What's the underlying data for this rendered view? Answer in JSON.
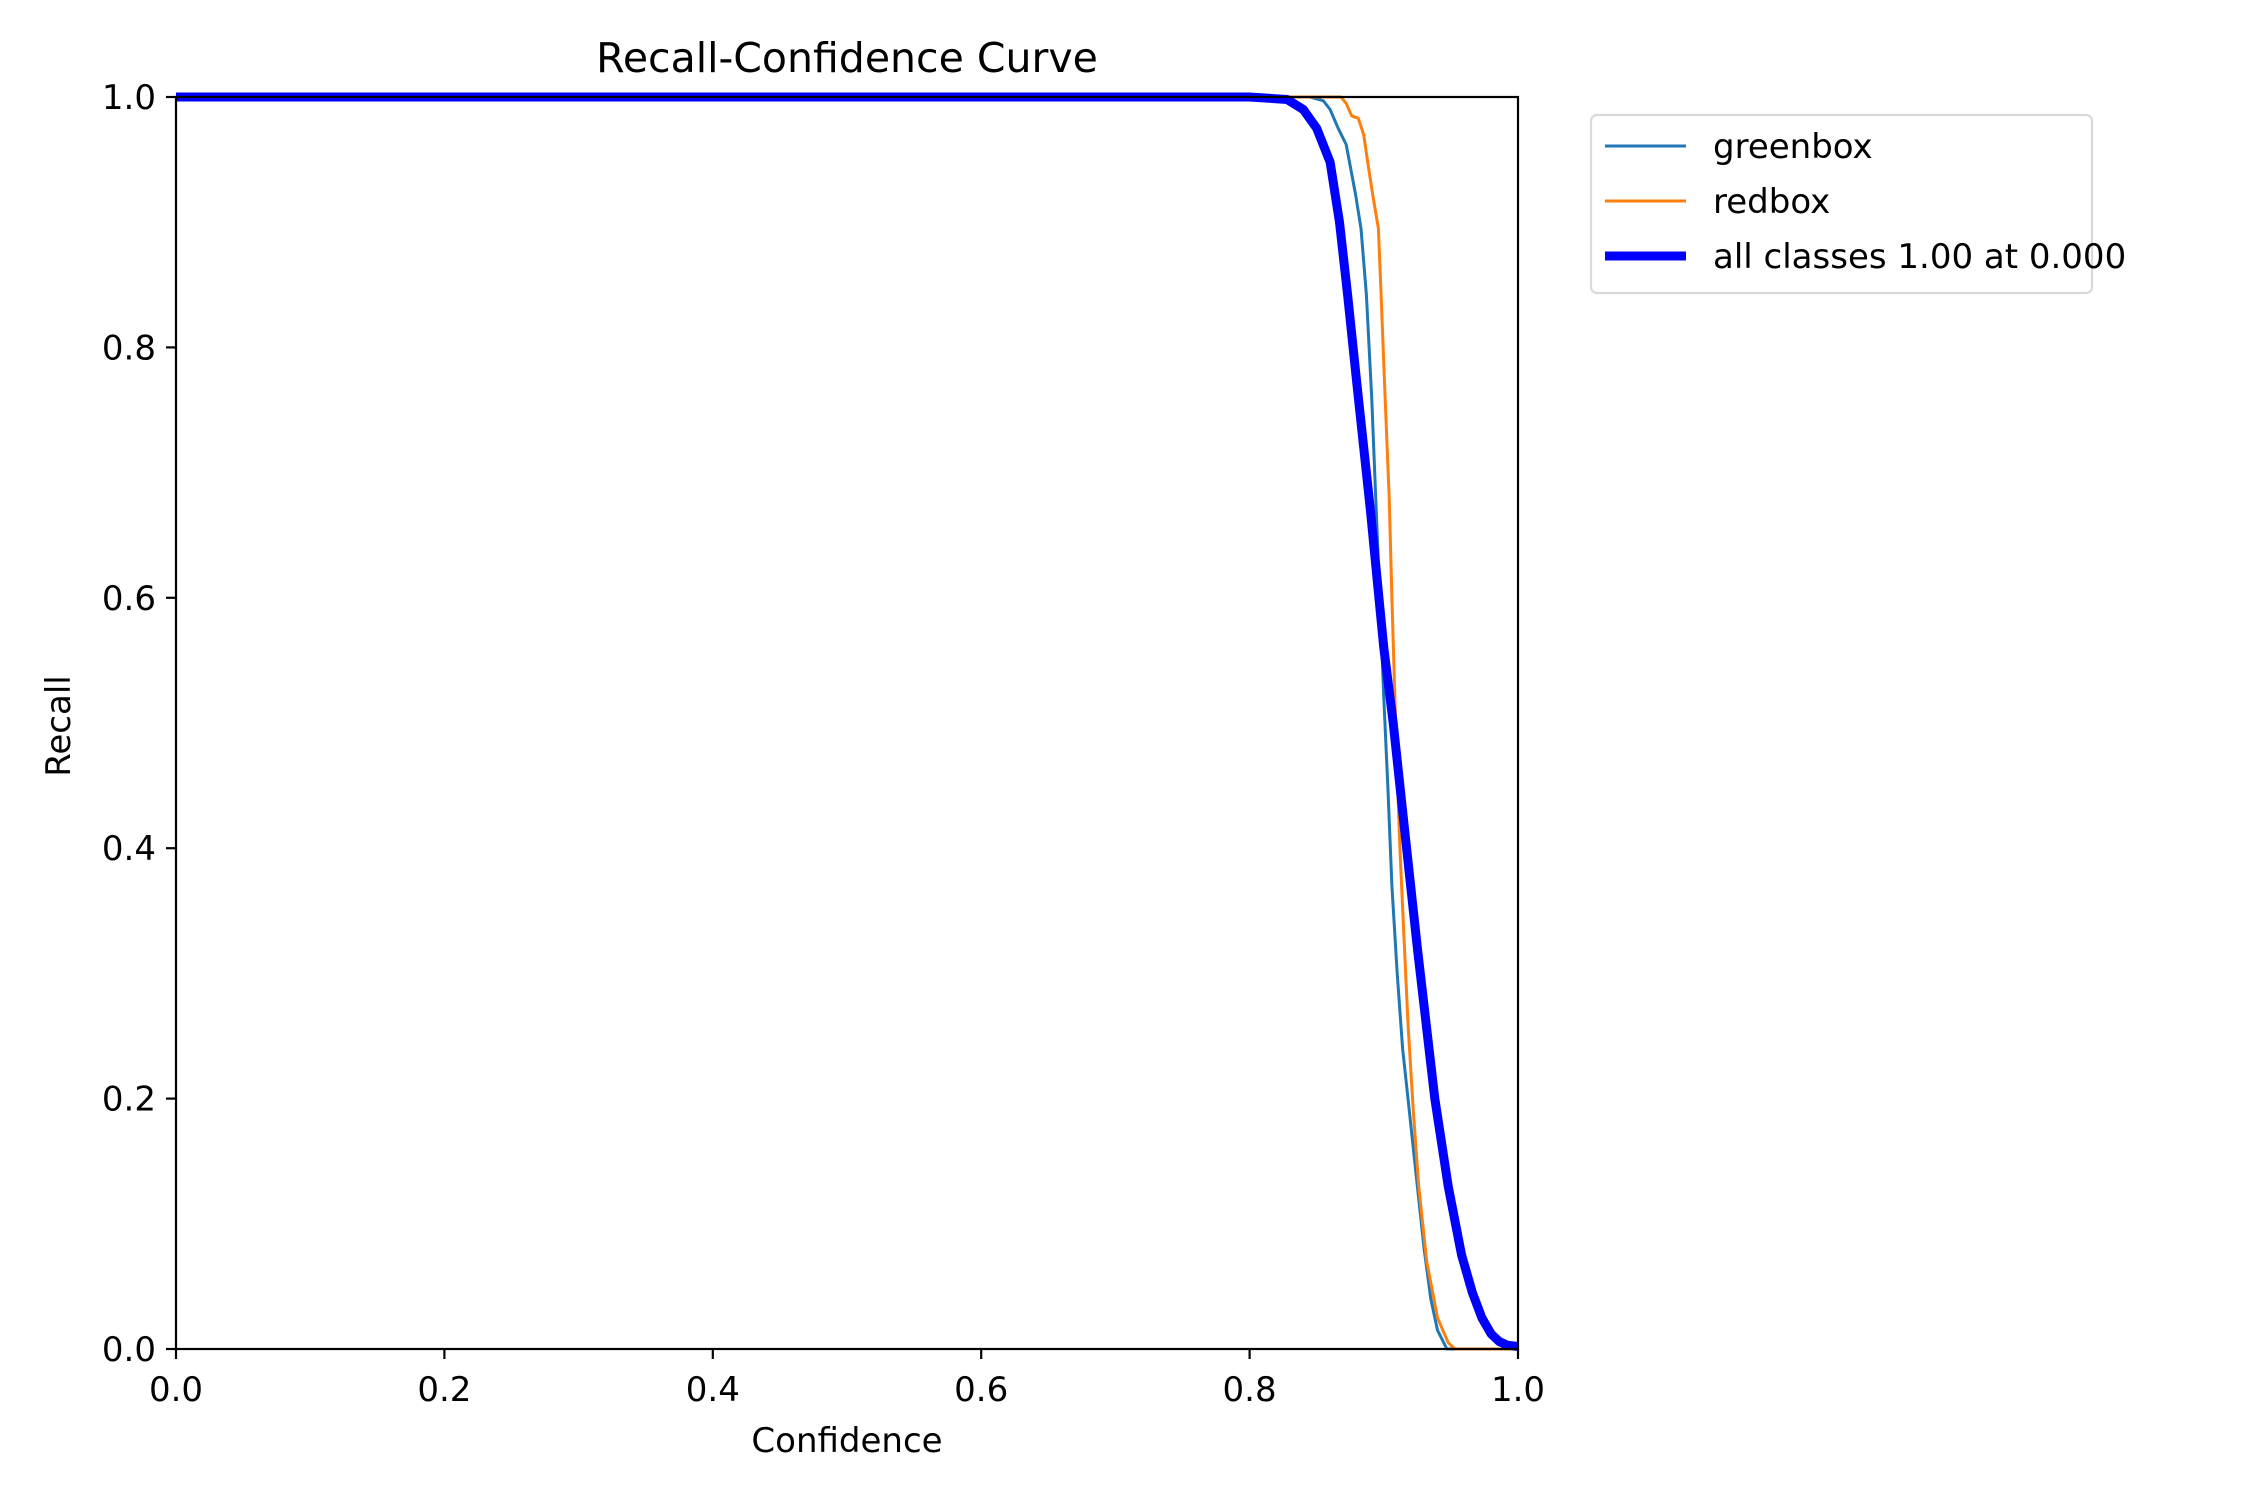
{
  "chart_data": {
    "type": "line",
    "title": "Recall-Confidence Curve",
    "xlabel": "Confidence",
    "ylabel": "Recall",
    "xlim": [
      0.0,
      1.0
    ],
    "ylim": [
      0.0,
      1.0
    ],
    "xticks": [
      "0.0",
      "0.2",
      "0.4",
      "0.6",
      "0.8",
      "1.0"
    ],
    "yticks": [
      "0.0",
      "0.2",
      "0.4",
      "0.6",
      "0.8",
      "1.0"
    ],
    "grid": false,
    "legend_position": "outside upper right",
    "series": [
      {
        "name": "greenbox",
        "color": "#1f77b4",
        "line_width": 3,
        "x": [
          0.0,
          0.845,
          0.855,
          0.86,
          0.866,
          0.872,
          0.879,
          0.883,
          0.887,
          0.891,
          0.894,
          0.897,
          0.9,
          0.903,
          0.906,
          0.91,
          0.914,
          0.918,
          0.924,
          0.93,
          0.935,
          0.94,
          0.947,
          1.0
        ],
        "y": [
          1.0,
          1.0,
          0.997,
          0.99,
          0.975,
          0.962,
          0.922,
          0.895,
          0.842,
          0.76,
          0.68,
          0.6,
          0.52,
          0.45,
          0.37,
          0.3,
          0.24,
          0.2,
          0.14,
          0.08,
          0.04,
          0.015,
          0.0,
          0.0
        ]
      },
      {
        "name": "redbox",
        "color": "#ff7f0e",
        "line_width": 3,
        "x": [
          0.0,
          0.868,
          0.872,
          0.876,
          0.881,
          0.885,
          0.888,
          0.892,
          0.896,
          0.898,
          0.901,
          0.904,
          0.906,
          0.908,
          0.91,
          0.912,
          0.915,
          0.918,
          0.922,
          0.926,
          0.932,
          0.94,
          0.948,
          0.953,
          1.0
        ],
        "y": [
          1.0,
          1.0,
          0.995,
          0.985,
          0.983,
          0.97,
          0.948,
          0.92,
          0.895,
          0.842,
          0.76,
          0.68,
          0.6,
          0.53,
          0.46,
          0.4,
          0.33,
          0.26,
          0.19,
          0.13,
          0.07,
          0.025,
          0.005,
          0.0,
          0.0
        ]
      },
      {
        "name": "all classes 1.00 at 0.000",
        "color": "#0000ff",
        "line_width": 9,
        "x": [
          0.0,
          0.8,
          0.828,
          0.84,
          0.85,
          0.86,
          0.867,
          0.873,
          0.88,
          0.89,
          0.9,
          0.907,
          0.915,
          0.925,
          0.938,
          0.948,
          0.958,
          0.966,
          0.973,
          0.98,
          0.986,
          0.992,
          1.0
        ],
        "y": [
          1.0,
          1.0,
          0.998,
          0.99,
          0.975,
          0.948,
          0.9,
          0.842,
          0.77,
          0.67,
          0.56,
          0.5,
          0.42,
          0.32,
          0.2,
          0.13,
          0.075,
          0.045,
          0.025,
          0.012,
          0.006,
          0.003,
          0.002
        ]
      }
    ]
  },
  "legend": {
    "items": [
      {
        "label": "greenbox",
        "color": "#1f77b4"
      },
      {
        "label": "redbox",
        "color": "#ff7f0e"
      },
      {
        "label": "all classes 1.00 at 0.000",
        "color": "#0000ff"
      }
    ]
  }
}
